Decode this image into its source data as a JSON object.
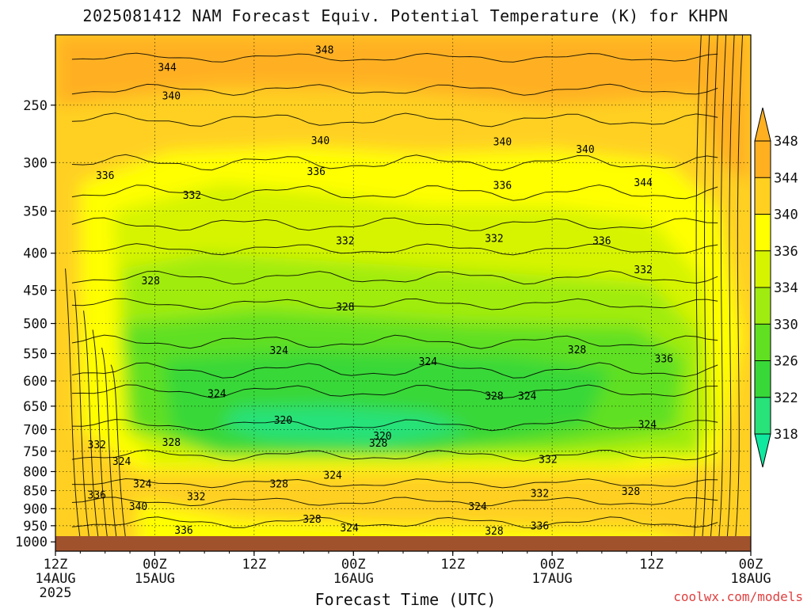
{
  "title": "2025081412 NAM Forecast Equiv. Potential Temperature (K) for KHPN",
  "x_axis_title": "Forecast Time (UTC)",
  "credit": "coolwx.com/models",
  "chart_data": {
    "type": "heatmap",
    "title": "2025081412 NAM Forecast Equiv. Potential Temperature (K) for KHPN",
    "xlabel": "Forecast Time (UTC)",
    "ylabel": "",
    "x_ticks": [
      {
        "hours": 0,
        "label": "12Z",
        "sub": "14AUG",
        "sub2": "2025"
      },
      {
        "hours": 12,
        "label": "00Z",
        "sub": "15AUG"
      },
      {
        "hours": 24,
        "label": "12Z",
        "sub": ""
      },
      {
        "hours": 36,
        "label": "00Z",
        "sub": "16AUG"
      },
      {
        "hours": 48,
        "label": "12Z",
        "sub": ""
      },
      {
        "hours": 60,
        "label": "00Z",
        "sub": "17AUG"
      },
      {
        "hours": 72,
        "label": "12Z",
        "sub": ""
      },
      {
        "hours": 84,
        "label": "00Z",
        "sub": "18AUG"
      }
    ],
    "x_range_hours": [
      0,
      84
    ],
    "y_scale": "log",
    "y_units": "hPa",
    "y_range": [
      1030,
      200
    ],
    "y_ticks": [
      250,
      300,
      350,
      400,
      450,
      500,
      550,
      600,
      650,
      700,
      750,
      800,
      850,
      900,
      950,
      1000
    ],
    "grid": true,
    "colorbar": {
      "levels": [
        318,
        322,
        326,
        330,
        334,
        336,
        340,
        344,
        348
      ],
      "range": [
        316,
        350
      ],
      "colors": [
        "#10e8a0",
        "#28e27a",
        "#38d838",
        "#60e020",
        "#a0ec10",
        "#d6f400",
        "#ffff00",
        "#ffd020",
        "#ffb020"
      ]
    },
    "contour_labels": [
      {
        "v": 348,
        "h": 32.5,
        "p": 210
      },
      {
        "v": 344,
        "h": 13.5,
        "p": 222
      },
      {
        "v": 340,
        "h": 14,
        "p": 243
      },
      {
        "v": 340,
        "h": 32,
        "p": 280
      },
      {
        "v": 340,
        "h": 54,
        "p": 281
      },
      {
        "v": 340,
        "h": 64,
        "p": 288
      },
      {
        "v": 336,
        "h": 6,
        "p": 313
      },
      {
        "v": 336,
        "h": 31.5,
        "p": 309
      },
      {
        "v": 336,
        "h": 54,
        "p": 323
      },
      {
        "v": 336,
        "h": 66,
        "p": 385
      },
      {
        "v": 344,
        "h": 71,
        "p": 320
      },
      {
        "v": 332,
        "h": 16.5,
        "p": 333
      },
      {
        "v": 332,
        "h": 35,
        "p": 385
      },
      {
        "v": 332,
        "h": 53,
        "p": 382
      },
      {
        "v": 332,
        "h": 71,
        "p": 422
      },
      {
        "v": 328,
        "h": 11.5,
        "p": 437
      },
      {
        "v": 328,
        "h": 35,
        "p": 475
      },
      {
        "v": 328,
        "h": 63,
        "p": 544
      },
      {
        "v": 336,
        "h": 73.5,
        "p": 560
      },
      {
        "v": 324,
        "h": 27,
        "p": 545
      },
      {
        "v": 324,
        "h": 45,
        "p": 565
      },
      {
        "v": 324,
        "h": 19.5,
        "p": 625
      },
      {
        "v": 328,
        "h": 53,
        "p": 630
      },
      {
        "v": 324,
        "h": 57,
        "p": 630
      },
      {
        "v": 320,
        "h": 27.5,
        "p": 680
      },
      {
        "v": 324,
        "h": 71.5,
        "p": 690
      },
      {
        "v": 320,
        "h": 39.5,
        "p": 715
      },
      {
        "v": 332,
        "h": 5,
        "p": 735
      },
      {
        "v": 328,
        "h": 14,
        "p": 730
      },
      {
        "v": 328,
        "h": 39,
        "p": 732
      },
      {
        "v": 324,
        "h": 8,
        "p": 775
      },
      {
        "v": 332,
        "h": 59.5,
        "p": 770
      },
      {
        "v": 324,
        "h": 33.5,
        "p": 810
      },
      {
        "v": 324,
        "h": 10.5,
        "p": 833
      },
      {
        "v": 328,
        "h": 27,
        "p": 833
      },
      {
        "v": 336,
        "h": 5,
        "p": 863
      },
      {
        "v": 332,
        "h": 17,
        "p": 867
      },
      {
        "v": 332,
        "h": 58.5,
        "p": 858
      },
      {
        "v": 328,
        "h": 69.5,
        "p": 853
      },
      {
        "v": 340,
        "h": 10,
        "p": 895
      },
      {
        "v": 324,
        "h": 51,
        "p": 895
      },
      {
        "v": 328,
        "h": 31,
        "p": 932
      },
      {
        "v": 324,
        "h": 35.5,
        "p": 958
      },
      {
        "v": 336,
        "h": 15.5,
        "p": 965
      },
      {
        "v": 336,
        "h": 58.5,
        "p": 952
      },
      {
        "v": 328,
        "h": 53,
        "p": 967
      }
    ]
  }
}
